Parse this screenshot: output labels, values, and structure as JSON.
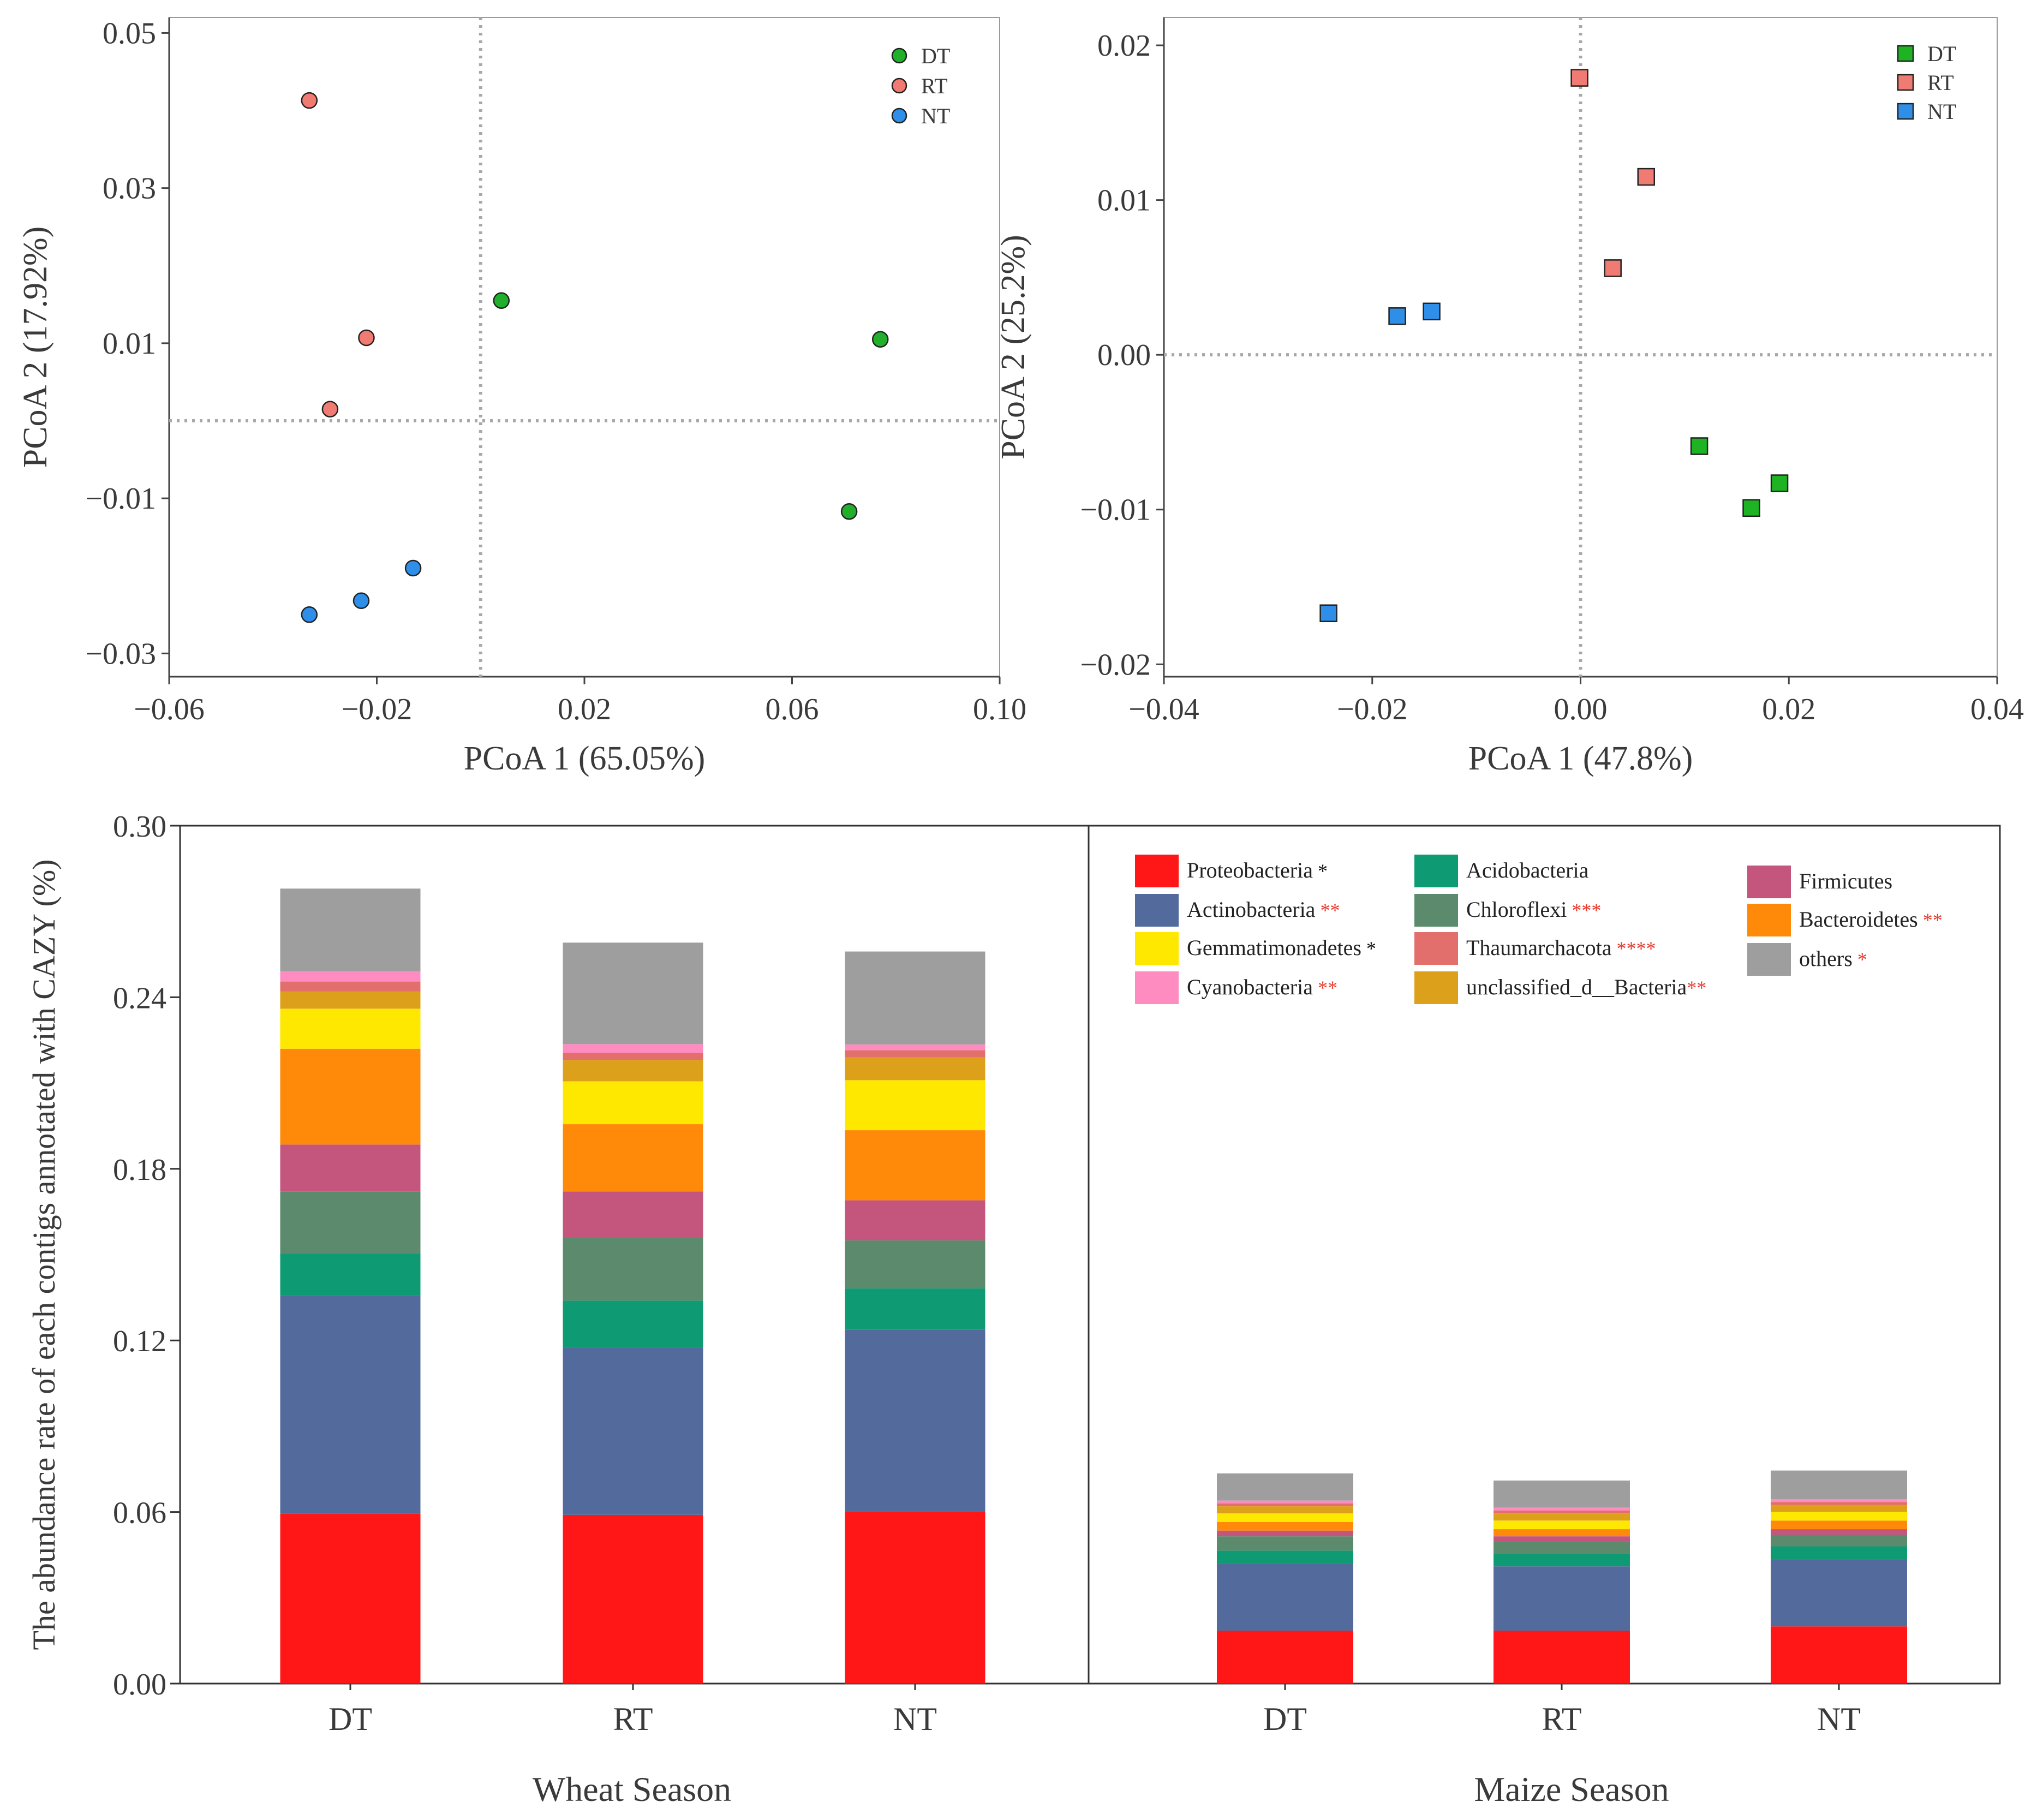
{
  "chart_data": [
    {
      "type": "scatter",
      "marker": "circle",
      "xlabel": "PCoA 1 (65.05%)",
      "ylabel": "PCoA 2 (17.92%)",
      "xlim": [
        -0.06,
        0.1
      ],
      "ylim": [
        -0.033,
        0.052
      ],
      "xticks": [
        -0.06,
        -0.02,
        0.02,
        0.06,
        0.1
      ],
      "xtick_labels": [
        "−0.06",
        "−0.02",
        "0.02",
        "0.06",
        "0.10"
      ],
      "yticks": [
        0.05,
        0.03,
        0.01,
        -0.01,
        -0.03
      ],
      "ytick_labels": [
        "0.05",
        "0.03",
        "0.01",
        "−0.01",
        "−0.03"
      ],
      "ref_lines": {
        "x": 0.0,
        "y": 0.0
      },
      "legend_position": "top-right",
      "series": [
        {
          "name": "DT",
          "color": "#22B02C",
          "points": [
            [
              0.004,
              0.0155
            ],
            [
              0.077,
              0.0105
            ],
            [
              0.071,
              -0.0117
            ]
          ]
        },
        {
          "name": "RT",
          "color": "#F07B72",
          "points": [
            [
              -0.033,
              0.0413
            ],
            [
              -0.022,
              0.0107
            ],
            [
              -0.029,
              0.0015
            ]
          ]
        },
        {
          "name": "NT",
          "color": "#2F8FE8",
          "points": [
            [
              -0.013,
              -0.019
            ],
            [
              -0.023,
              -0.0232
            ],
            [
              -0.033,
              -0.025
            ]
          ]
        }
      ]
    },
    {
      "type": "scatter",
      "marker": "square",
      "xlabel": "PCoA 1 (47.8%)",
      "ylabel": "PCoA 2 (25.2%)",
      "xlim": [
        -0.04,
        0.04
      ],
      "ylim": [
        -0.0208,
        0.0218
      ],
      "xticks": [
        -0.04,
        -0.02,
        0.0,
        0.02,
        0.04
      ],
      "xtick_labels": [
        "−0.04",
        "−0.02",
        "0.00",
        "0.02",
        "0.04"
      ],
      "yticks": [
        0.02,
        0.01,
        0.0,
        -0.01,
        -0.02
      ],
      "ytick_labels": [
        "0.02",
        "0.01",
        "0.00",
        "−0.01",
        "−0.02"
      ],
      "ref_lines": {
        "x": 0.0,
        "y": 0.0
      },
      "legend_position": "top-right",
      "series": [
        {
          "name": "DT",
          "color": "#1DB322",
          "points": [
            [
              0.0114,
              -0.0059
            ],
            [
              0.0191,
              -0.0083
            ],
            [
              0.0164,
              -0.0099
            ]
          ]
        },
        {
          "name": "RT",
          "color": "#F07B72",
          "points": [
            [
              -0.0001,
              0.0179
            ],
            [
              0.0063,
              0.0115
            ],
            [
              0.0031,
              0.0056
            ]
          ]
        },
        {
          "name": "NT",
          "color": "#2F8FE8",
          "points": [
            [
              -0.0176,
              0.0025
            ],
            [
              -0.0143,
              0.0028
            ],
            [
              -0.0242,
              -0.0167
            ]
          ]
        }
      ]
    },
    {
      "type": "bar",
      "stacked": true,
      "ylabel": "The abundance rate of each contigs annotated with CAZY (%)",
      "ylim": [
        0,
        0.3
      ],
      "yticks": [
        0.0,
        0.06,
        0.12,
        0.18,
        0.24,
        0.3
      ],
      "ytick_labels": [
        "0.00",
        "0.06",
        "0.12",
        "0.18",
        "0.24",
        "0.30"
      ],
      "legend_position": "top-right of Maize Season panel",
      "groups": [
        {
          "label": "Wheat Season",
          "categories": [
            "DT",
            "RT",
            "NT"
          ]
        },
        {
          "label": "Maize Season",
          "categories": [
            "DT",
            "RT",
            "NT"
          ]
        }
      ],
      "series": [
        {
          "name": "Proteobacteria",
          "sig": " *",
          "sig_color": "#111111",
          "color": "#FF1717",
          "values": [
            0.0595,
            0.059,
            0.06,
            0.0185,
            0.0185,
            0.02
          ]
        },
        {
          "name": "Actinobacteria",
          "sig": " **",
          "sig_color": "#E83B2E",
          "color": "#536B9C",
          "values": [
            0.0763,
            0.0587,
            0.0637,
            0.0235,
            0.0225,
            0.0235
          ]
        },
        {
          "name": "Acidobacteria",
          "sig": "",
          "sig_color": "#111111",
          "color": "#0E9B73",
          "values": [
            0.0147,
            0.0162,
            0.0145,
            0.0045,
            0.0045,
            0.0045
          ]
        },
        {
          "name": "Chloroflexi",
          "sig": " ***",
          "sig_color": "#E83B2E",
          "color": "#5C8A6C",
          "values": [
            0.0215,
            0.0222,
            0.0168,
            0.005,
            0.004,
            0.004
          ]
        },
        {
          "name": "Firmicutes",
          "sig": "",
          "sig_color": "#111111",
          "color": "#C4567D",
          "values": [
            0.0165,
            0.016,
            0.014,
            0.002,
            0.002,
            0.002
          ]
        },
        {
          "name": "Bacteroidetes",
          "sig": " **",
          "sig_color": "#E83B2E",
          "color": "#FF8A0A",
          "values": [
            0.0335,
            0.0235,
            0.0245,
            0.003,
            0.0025,
            0.003
          ]
        },
        {
          "name": "Gemmatimonadetes",
          "sig": " *",
          "sig_color": "#111111",
          "color": "#FFE800",
          "values": [
            0.014,
            0.015,
            0.0175,
            0.003,
            0.003,
            0.003
          ]
        },
        {
          "name": "unclassified_d__Bacteria",
          "sig": "**",
          "sig_color": "#E83B2E",
          "color": "#DDA01A",
          "values": [
            0.006,
            0.0075,
            0.008,
            0.0025,
            0.0025,
            0.0025
          ]
        },
        {
          "name": "Thaumarchacota",
          "sig": " ****",
          "sig_color": "#E83B2E",
          "color": "#E26F6B",
          "values": [
            0.0035,
            0.0025,
            0.0025,
            0.001,
            0.001,
            0.001
          ]
        },
        {
          "name": "Cyanobacteria",
          "sig": " **",
          "sig_color": "#E83B2E",
          "color": "#FF8CC0",
          "values": [
            0.0035,
            0.003,
            0.002,
            0.001,
            0.001,
            0.001
          ]
        },
        {
          "name": "others",
          "sig": " *",
          "sig_color": "#E83B2E",
          "color": "#9E9E9E",
          "values": [
            0.029,
            0.0355,
            0.0325,
            0.0095,
            0.0095,
            0.01
          ]
        }
      ],
      "legend_columns": [
        [
          "Proteobacteria",
          "Actinobacteria",
          "Gemmatimonadetes",
          "Cyanobacteria"
        ],
        [
          "Acidobacteria",
          "Chloroflexi",
          "Thaumarchacota",
          "unclassified_d__Bacteria"
        ],
        [
          "Firmicutes",
          "Bacteroidetes",
          "others"
        ]
      ]
    }
  ]
}
